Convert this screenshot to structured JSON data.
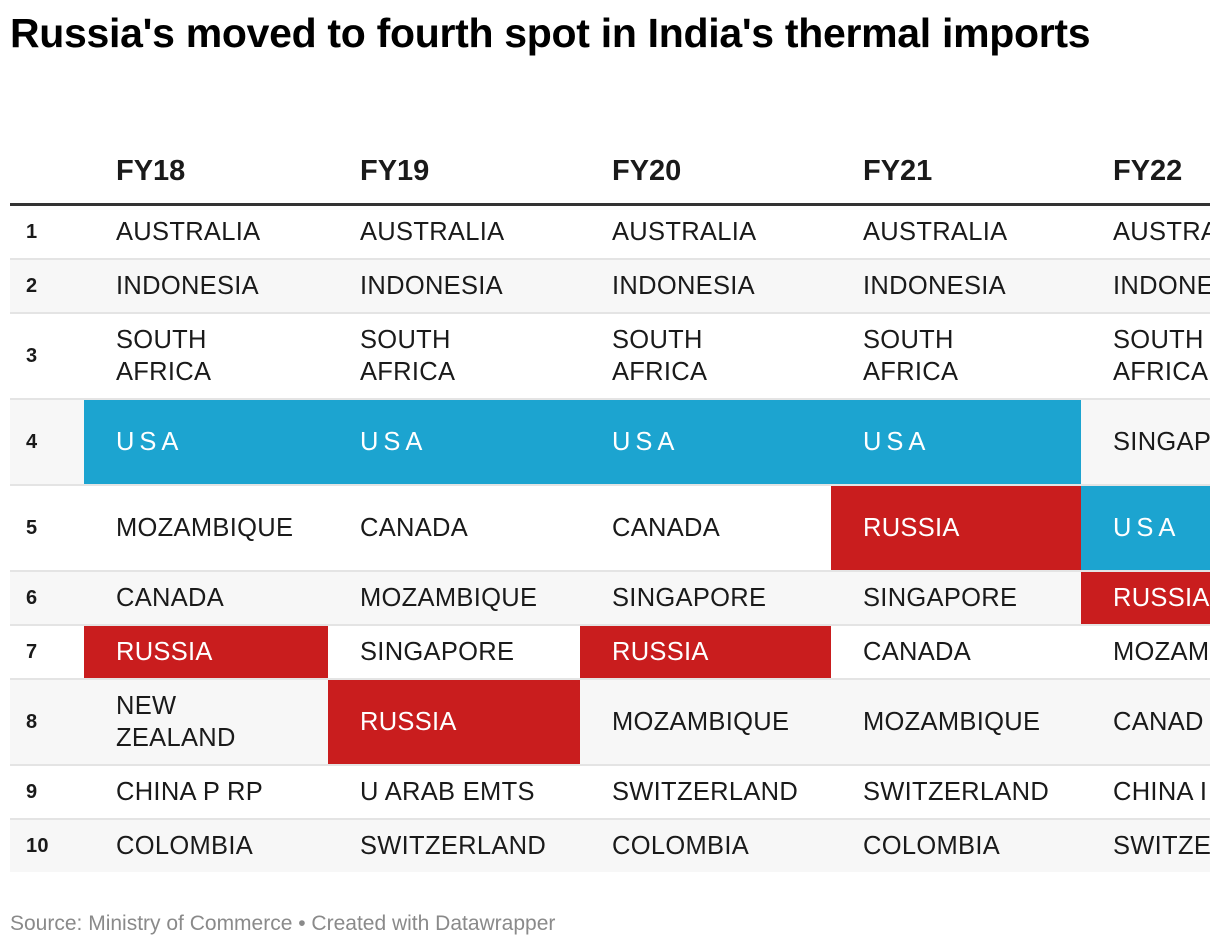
{
  "chart_data": {
    "type": "table",
    "title": "Russia's moved to fourth spot in India's thermal imports",
    "columns": [
      "",
      "FY18",
      "FY19",
      "FY20",
      "FY21",
      "FY22"
    ],
    "rows": [
      {
        "rank": "1",
        "values": [
          "AUSTRALIA",
          "AUSTRALIA",
          "AUSTRALIA",
          "AUSTRALIA",
          "AUSTRA"
        ]
      },
      {
        "rank": "2",
        "values": [
          "INDONESIA",
          "INDONESIA",
          "INDONESIA",
          "INDONESIA",
          "INDONE"
        ]
      },
      {
        "rank": "3",
        "values": [
          "SOUTH\nAFRICA",
          "SOUTH\nAFRICA",
          "SOUTH\nAFRICA",
          "SOUTH\nAFRICA",
          "SOUTH\nAFRICA"
        ]
      },
      {
        "rank": "4",
        "values": [
          "USA",
          "USA",
          "USA",
          "USA",
          "SINGAP"
        ]
      },
      {
        "rank": "5",
        "values": [
          "MOZAMBIQUE",
          "CANADA",
          "CANADA",
          "RUSSIA",
          "USA"
        ]
      },
      {
        "rank": "6",
        "values": [
          "CANADA",
          "MOZAMBIQUE",
          "SINGAPORE",
          "SINGAPORE",
          "RUSSIA"
        ]
      },
      {
        "rank": "7",
        "values": [
          "RUSSIA",
          "SINGAPORE",
          "RUSSIA",
          "CANADA",
          "MOZAM"
        ]
      },
      {
        "rank": "8",
        "values": [
          "NEW\nZEALAND",
          "RUSSIA",
          "MOZAMBIQUE",
          "MOZAMBIQUE",
          "CANAD"
        ]
      },
      {
        "rank": "9",
        "values": [
          "CHINA P RP",
          "U ARAB EMTS",
          "SWITZERLAND",
          "SWITZERLAND",
          "CHINA I"
        ]
      },
      {
        "rank": "10",
        "values": [
          "COLOMBIA",
          "SWITZERLAND",
          "COLOMBIA",
          "COLOMBIA",
          "SWITZE"
        ]
      }
    ],
    "highlight_colors": {
      "USA": "#1ca4d0",
      "RUSSIA": "#c91d1e"
    }
  },
  "footer": {
    "source": "Source: Ministry of Commerce • Created with Datawrapper"
  }
}
